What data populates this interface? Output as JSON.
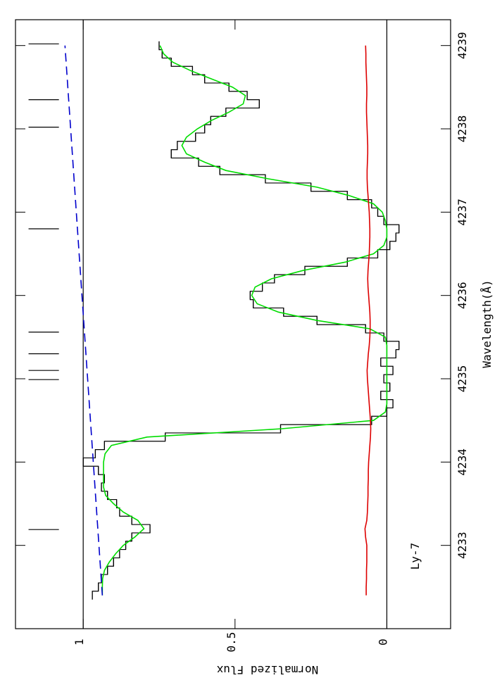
{
  "chart_data": {
    "type": "line",
    "x_label": "Wavelength(Å)",
    "y_label": "Normalized Flux",
    "annotation": "Ly-7",
    "xlim": [
      4232.0,
      4239.31
    ],
    "ylim": [
      -0.21,
      1.223
    ],
    "xticks": [
      4233,
      4234,
      4235,
      4236,
      4237,
      4238,
      4239
    ],
    "yticks": [
      0,
      0.5,
      1
    ],
    "hlines": [
      0,
      1
    ],
    "components": [
      4233.19,
      4234.99,
      4235.1,
      4235.3,
      4235.56,
      4236.8,
      4238.02,
      4238.35,
      4239.02
    ],
    "x": [
      4232.4,
      4232.5,
      4232.6,
      4232.7,
      4232.8,
      4232.9,
      4233.0,
      4233.1,
      4233.2,
      4233.3,
      4233.4,
      4233.5,
      4233.6,
      4233.7,
      4233.8,
      4233.9,
      4234.0,
      4234.1,
      4234.2,
      4234.3,
      4234.4,
      4234.5,
      4234.6,
      4234.7,
      4234.8,
      4234.9,
      4235.0,
      4235.1,
      4235.2,
      4235.3,
      4235.4,
      4235.5,
      4235.6,
      4235.7,
      4235.8,
      4235.9,
      4236.0,
      4236.1,
      4236.2,
      4236.3,
      4236.4,
      4236.5,
      4236.6,
      4236.7,
      4236.8,
      4236.9,
      4237.0,
      4237.1,
      4237.2,
      4237.3,
      4237.4,
      4237.5,
      4237.6,
      4237.7,
      4237.8,
      4237.9,
      4238.0,
      4238.1,
      4238.2,
      4238.3,
      4238.4,
      4238.5,
      4238.6,
      4238.7,
      4238.8,
      4238.9,
      4239.0
    ],
    "series": [
      {
        "color": "#000000",
        "drawstyle": "steps-mid",
        "values": [
          0.97,
          0.95,
          0.94,
          0.92,
          0.9,
          0.88,
          0.86,
          0.84,
          0.78,
          0.84,
          0.88,
          0.89,
          0.92,
          0.94,
          0.93,
          0.95,
          1.0,
          0.96,
          0.93,
          0.73,
          0.35,
          0.05,
          0.0,
          -0.02,
          0.02,
          -0.01,
          0.01,
          -0.02,
          0.02,
          -0.03,
          -0.04,
          0.01,
          0.07,
          0.23,
          0.34,
          0.44,
          0.45,
          0.41,
          0.37,
          0.27,
          0.13,
          0.03,
          -0.01,
          -0.03,
          -0.04,
          0.01,
          0.03,
          0.05,
          0.13,
          0.25,
          0.4,
          0.55,
          0.62,
          0.71,
          0.69,
          0.63,
          0.6,
          0.58,
          0.53,
          0.42,
          0.46,
          0.52,
          0.6,
          0.64,
          0.71,
          0.74,
          0.75
        ]
      },
      {
        "color": "#00dd00",
        "values": [
          0.937,
          0.937,
          0.936,
          0.93,
          0.914,
          0.893,
          0.868,
          0.83,
          0.8,
          0.82,
          0.868,
          0.9,
          0.926,
          0.933,
          0.933,
          0.933,
          0.933,
          0.928,
          0.907,
          0.79,
          0.346,
          0.044,
          0.005,
          0,
          0,
          0,
          0,
          0,
          0,
          0,
          0,
          0.005,
          0.056,
          0.23,
          0.357,
          0.427,
          0.445,
          0.434,
          0.38,
          0.276,
          0.137,
          0.044,
          0.01,
          0,
          0,
          0.005,
          0.015,
          0.044,
          0.125,
          0.23,
          0.39,
          0.53,
          0.6,
          0.66,
          0.675,
          0.66,
          0.624,
          0.578,
          0.52,
          0.473,
          0.466,
          0.508,
          0.578,
          0.647,
          0.705,
          0.735,
          0.747
        ]
      },
      {
        "color": "#dd0000",
        "values": [
          0.068,
          0.068,
          0.067,
          0.067,
          0.066,
          0.066,
          0.066,
          0.07,
          0.072,
          0.066,
          0.064,
          0.063,
          0.062,
          0.062,
          0.061,
          0.061,
          0.06,
          0.058,
          0.056,
          0.054,
          0.053,
          0.054,
          0.056,
          0.058,
          0.06,
          0.062,
          0.064,
          0.065,
          0.063,
          0.061,
          0.058,
          0.056,
          0.055,
          0.055,
          0.056,
          0.058,
          0.06,
          0.062,
          0.063,
          0.062,
          0.06,
          0.058,
          0.057,
          0.056,
          0.056,
          0.057,
          0.058,
          0.06,
          0.062,
          0.064,
          0.065,
          0.065,
          0.064,
          0.063,
          0.063,
          0.064,
          0.065,
          0.066,
          0.067,
          0.067,
          0.066,
          0.066,
          0.067,
          0.068,
          0.069,
          0.069,
          0.07
        ]
      },
      {
        "color": "#0000cc",
        "dashed": true,
        "x": [
          4232.4,
          4239.0
        ],
        "values": [
          0.937,
          1.06
        ]
      }
    ]
  }
}
